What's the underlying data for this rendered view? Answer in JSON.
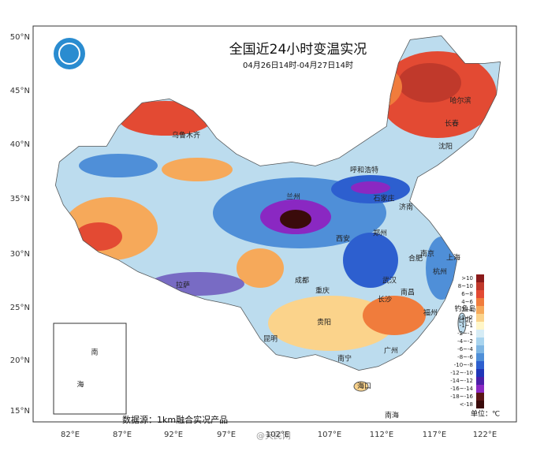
{
  "header": {
    "title": "全国近24小时变温实况",
    "subtitle": "04月26日14时-04月27日14时"
  },
  "latitude_labels": [
    "50°N",
    "45°N",
    "40°N",
    "35°N",
    "30°N",
    "25°N",
    "20°N",
    "15°N"
  ],
  "longitude_labels": [
    "82°E",
    "87°E",
    "92°E",
    "97°E",
    "102°E",
    "107°E",
    "112°E",
    "117°E",
    "122°E"
  ],
  "cities": [
    "乌鲁木齐",
    "哈尔滨",
    "长春",
    "沈阳",
    "呼和浩特",
    "兰州",
    "石家庄",
    "济南",
    "郑州",
    "西安",
    "南京",
    "上海",
    "合肥",
    "杭州",
    "成都",
    "武汉",
    "重庆",
    "长沙",
    "南昌",
    "拉萨",
    "贵阳",
    "福州",
    "台北",
    "钓鱼岛",
    "昆明",
    "南宁",
    "广州",
    "海口",
    "南海"
  ],
  "legend": {
    "unit": "单位：℃",
    "items": [
      {
        "label": ">10",
        "color": "#8b1a1a"
      },
      {
        "label": "8~10",
        "color": "#c0392b"
      },
      {
        "label": "6~8",
        "color": "#e34a33"
      },
      {
        "label": "4~6",
        "color": "#f07c3c"
      },
      {
        "label": "2~4",
        "color": "#f6a95a"
      },
      {
        "label": "1~2",
        "color": "#fbd38b"
      },
      {
        "label": "-1~1",
        "color": "#fff6c8"
      },
      {
        "label": "-2~-1",
        "color": "#d6ecf5"
      },
      {
        "label": "-4~-2",
        "color": "#a9d4ee"
      },
      {
        "label": "-6~-4",
        "color": "#7fb6e3"
      },
      {
        "label": "-8~-6",
        "color": "#4f8fd8"
      },
      {
        "label": "-10~-8",
        "color": "#2d5fcf"
      },
      {
        "label": "-12~-10",
        "color": "#2036b8"
      },
      {
        "label": "-14~-12",
        "color": "#4b1fa8"
      },
      {
        "label": "-16~-14",
        "color": "#8a28c2"
      },
      {
        "label": "-18~-16",
        "color": "#5a1616"
      },
      {
        "label": "<-18",
        "color": "#3a0b0b"
      }
    ]
  },
  "inset": {
    "labels": [
      "南",
      "海"
    ]
  },
  "source": "数据源：1km融合实况产品",
  "watermark": "@天民网"
}
